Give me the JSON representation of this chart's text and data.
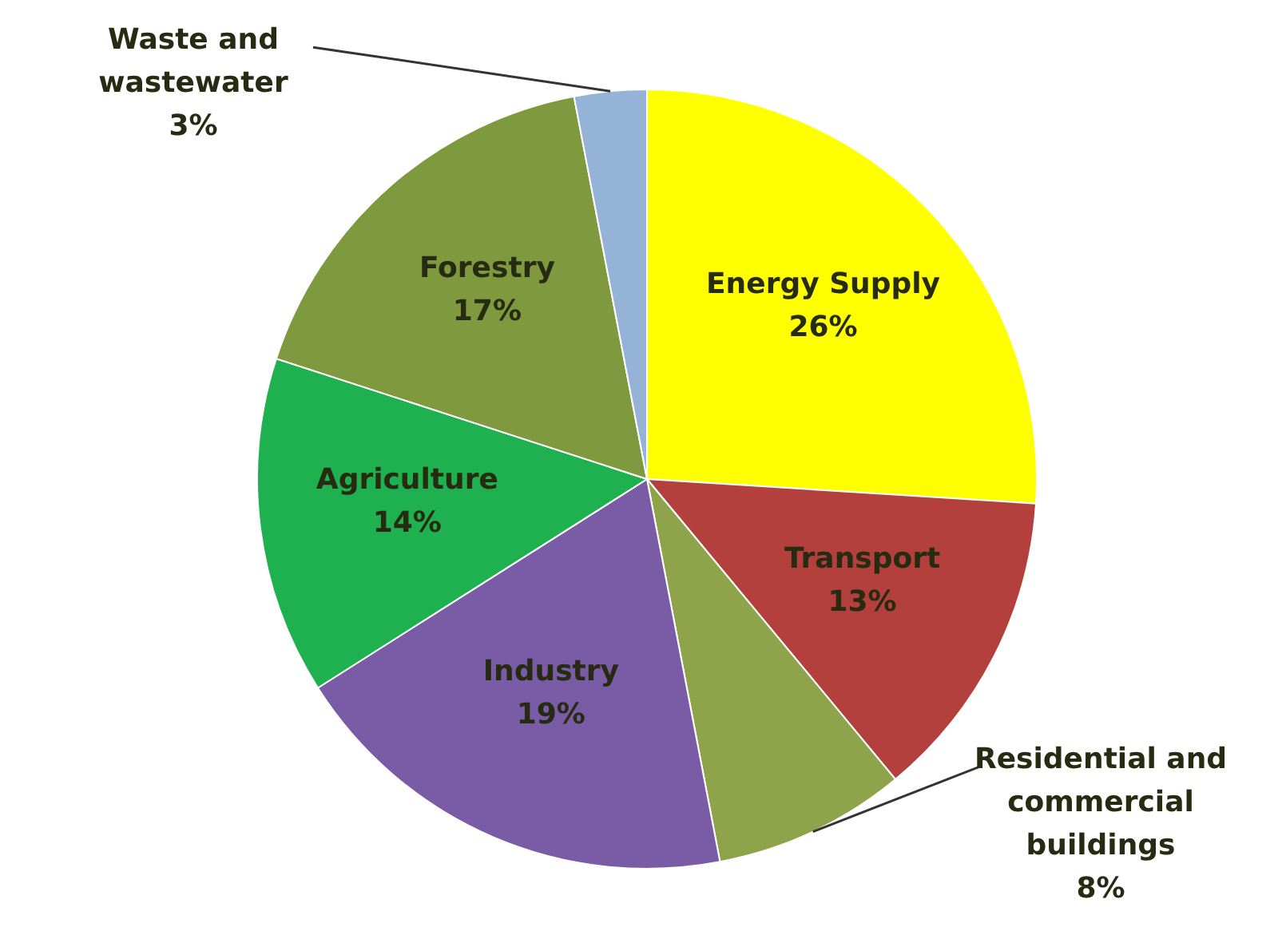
{
  "chart_data": {
    "type": "pie",
    "categories": [
      "Energy Supply",
      "Transport",
      "Residential and commercial buildings",
      "Industry",
      "Agriculture",
      "Forestry",
      "Waste and wastewater"
    ],
    "values": [
      26,
      13,
      8,
      19,
      14,
      17,
      3
    ],
    "colors": [
      "#ffff00",
      "#b3403c",
      "#8ea34a",
      "#7a5ca6",
      "#1fb04f",
      "#7f9a3e",
      "#95b3d7"
    ],
    "value_labels": [
      "26%",
      "13%",
      "8%",
      "19%",
      "14%",
      "17%",
      "3%"
    ]
  }
}
